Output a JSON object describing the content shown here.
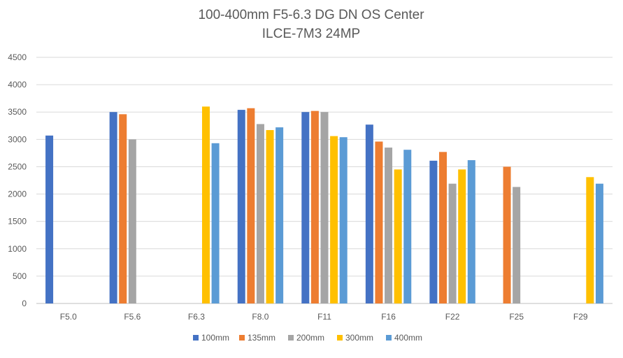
{
  "chart_data": {
    "type": "bar",
    "title": "100-400mm F5-6.3 DG DN OS Center",
    "subtitle": "ILCE-7M3 24MP",
    "xlabel": "",
    "ylabel": "",
    "ylim": [
      0,
      4500
    ],
    "yticks": [
      0,
      500,
      1000,
      1500,
      2000,
      2500,
      3000,
      3500,
      4000,
      4500
    ],
    "grid": true,
    "legend_position": "bottom",
    "categories": [
      "F5.0",
      "F5.6",
      "F6.3",
      "F8.0",
      "F11",
      "F16",
      "F22",
      "F25",
      "F29"
    ],
    "series": [
      {
        "name": "100mm",
        "color": "#4472C4",
        "values": [
          3070,
          3500,
          null,
          3540,
          3500,
          3270,
          2610,
          null,
          null
        ]
      },
      {
        "name": "135mm",
        "color": "#ED7D31",
        "values": [
          null,
          3460,
          null,
          3570,
          3520,
          2960,
          2770,
          2500,
          null
        ]
      },
      {
        "name": "200mm",
        "color": "#A5A5A5",
        "values": [
          null,
          3000,
          null,
          3280,
          3500,
          2850,
          2190,
          2130,
          null
        ]
      },
      {
        "name": "300mm",
        "color": "#FFC000",
        "values": [
          null,
          null,
          3600,
          3170,
          3060,
          2450,
          2450,
          null,
          2310
        ]
      },
      {
        "name": "400mm",
        "color": "#5B9BD5",
        "values": [
          null,
          null,
          2930,
          3220,
          3040,
          2810,
          2620,
          null,
          2190
        ]
      }
    ]
  }
}
